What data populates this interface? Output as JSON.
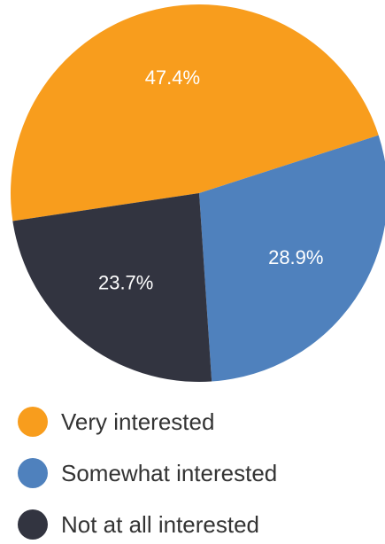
{
  "chart_data": {
    "type": "pie",
    "categories": [
      "Very interested",
      "Somewhat interested",
      "Not at all interested"
    ],
    "values": [
      47.4,
      28.9,
      23.7
    ],
    "value_labels": [
      "47.4%",
      "28.9%",
      "23.7%"
    ],
    "colors": [
      "#f89d1d",
      "#4f81bd",
      "#323440"
    ],
    "legend_placement": "bottom"
  }
}
